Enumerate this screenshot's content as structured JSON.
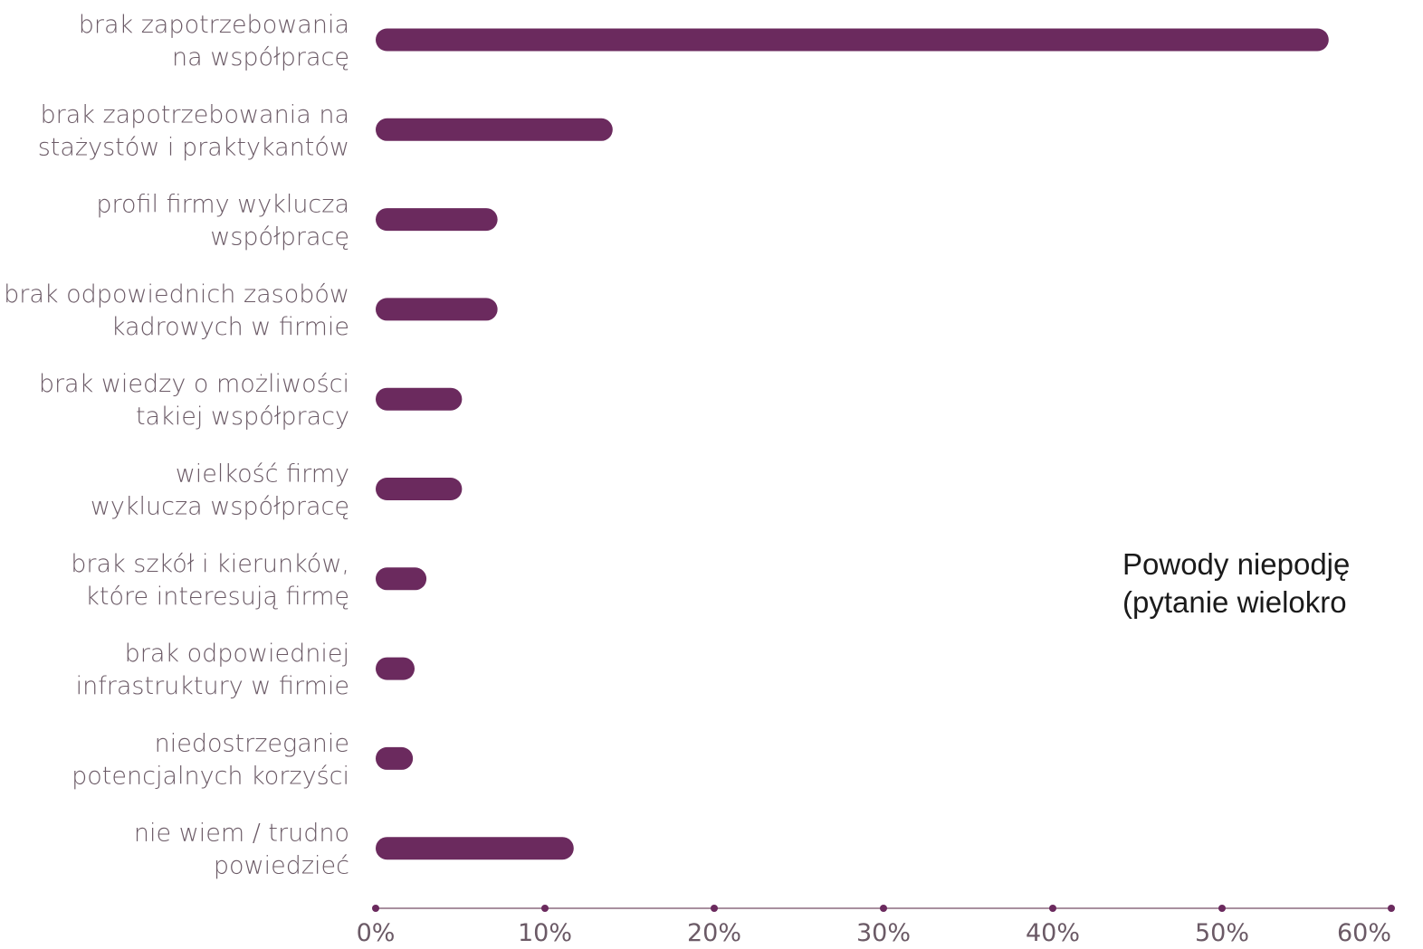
{
  "chart_data": {
    "type": "bar",
    "orientation": "horizontal",
    "categories": [
      [
        "brak zapotrzebowania",
        "na współpracę"
      ],
      [
        "brak zapotrzebowania na",
        "stażystów i praktykantów"
      ],
      [
        "profil firmy wyklucza",
        "współpracę"
      ],
      [
        "brak odpowiednich zasobów",
        "kadrowych w firmie"
      ],
      [
        "brak wiedzy o możliwości",
        "takiej współpracy"
      ],
      [
        "wielkość firmy",
        "wyklucza współpracę"
      ],
      [
        "brak szkół i kierunków,",
        "które interesują firmę"
      ],
      [
        "brak odpowiedniej",
        "infrastruktury w firmie"
      ],
      [
        "niedostrzeganie",
        "potencjalnych korzyści"
      ],
      [
        "nie wiem / trudno",
        "powiedzieć"
      ]
    ],
    "values": [
      56.3,
      14.0,
      7.2,
      7.2,
      5.1,
      5.1,
      3.0,
      2.3,
      2.2,
      11.7
    ],
    "xlim": [
      0,
      60
    ],
    "ticks": [
      "0%",
      "10%",
      "20%",
      "30%",
      "40%",
      "50%",
      "60%"
    ],
    "bar_color": "#6b2a5e",
    "axis_color": "#a8909f",
    "grid": false
  },
  "annotation": {
    "line1": "Powody niepodję",
    "line2": "(pytanie wielokro"
  }
}
